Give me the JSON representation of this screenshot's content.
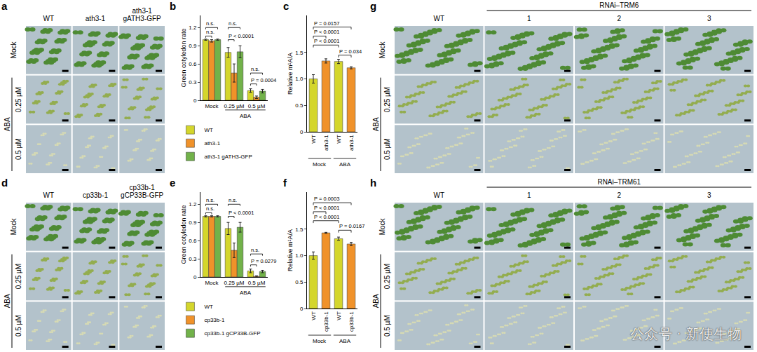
{
  "chart_data": [
    {
      "panel": "b",
      "type": "bar",
      "categories": [
        "Mock",
        "0.25 µM",
        "0.5 µM"
      ],
      "category_groups": [
        {
          "label": "ABA",
          "from": 1,
          "to": 2
        }
      ],
      "series": [
        {
          "name": "WT",
          "color": "#d4d62c",
          "values": [
            1.0,
            0.79,
            0.16
          ],
          "errors": [
            0.01,
            0.08,
            0.03
          ]
        },
        {
          "name": "ath3-1",
          "color": "#f0922a",
          "values": [
            0.98,
            0.45,
            0.05
          ],
          "errors": [
            0.02,
            0.15,
            0.02
          ]
        },
        {
          "name": "ath3-1 gATH3-GFP",
          "color": "#72b24a",
          "values": [
            1.0,
            0.8,
            0.15
          ],
          "errors": [
            0.01,
            0.1,
            0.03
          ]
        }
      ],
      "y_label": "Green cotyledon rate",
      "ylim": [
        0,
        1.4
      ],
      "yticks": [
        0,
        0.3,
        0.6,
        0.9,
        1.2
      ],
      "legend": "bottom",
      "comparisons": [
        {
          "category": 0,
          "from": 0,
          "to": 1,
          "y": 1.06,
          "label": "n.s."
        },
        {
          "category": 0,
          "from": 0,
          "to": 2,
          "y": 1.2,
          "label": "n.s."
        },
        {
          "category": 1,
          "from": 0,
          "to": 1,
          "y": 1.0,
          "label": "P < 0.0001"
        },
        {
          "category": 1,
          "from": 0,
          "to": 2,
          "y": 1.2,
          "label": "n.s."
        },
        {
          "category": 2,
          "from": 0,
          "to": 1,
          "y": 0.27,
          "label": "P = 0.0004"
        },
        {
          "category": 2,
          "from": 0,
          "to": 2,
          "y": 0.45,
          "label": "n.s."
        }
      ]
    },
    {
      "panel": "c",
      "type": "bar",
      "categories": [
        "WT",
        "ath3-1",
        "WT",
        "ath3-1"
      ],
      "category_groups": [
        {
          "label": "Mock",
          "from": 0,
          "to": 1
        },
        {
          "label": "ABA",
          "from": 2,
          "to": 3
        }
      ],
      "values": [
        1.0,
        1.34,
        1.33,
        1.21
      ],
      "errors": [
        0.08,
        0.04,
        0.04,
        0.02
      ],
      "colors": [
        "#d4d62c",
        "#f0922a",
        "#d4d62c",
        "#f0922a"
      ],
      "y_label": "Relative m¹A/A",
      "ylim": [
        0,
        2.2
      ],
      "yticks": [
        0,
        0.5,
        {
          "value": 1,
          "label": "1.0"
        },
        1.5
      ],
      "comparisons": [
        {
          "from": 2,
          "to": 3,
          "y": 1.45,
          "label": "P = 0.034"
        },
        {
          "from": 0,
          "to": 2,
          "y": 1.64,
          "label": "P < 0.0001"
        },
        {
          "from": 0,
          "to": 1,
          "y": 1.81,
          "label": "P < 0.0001"
        },
        {
          "from": 0,
          "to": 3,
          "y": 1.98,
          "label": "P = 0.0157"
        }
      ]
    },
    {
      "panel": "e",
      "type": "bar",
      "categories": [
        "Mock",
        "0.25 µM",
        "0.5 µM"
      ],
      "category_groups": [
        {
          "label": "ABA",
          "from": 1,
          "to": 2
        }
      ],
      "series": [
        {
          "name": "WT",
          "color": "#d4d62c",
          "values": [
            1.0,
            0.8,
            0.1
          ],
          "errors": [
            0.01,
            0.1,
            0.03
          ]
        },
        {
          "name": "cp33b-1",
          "color": "#f0922a",
          "values": [
            1.0,
            0.44,
            0.01
          ],
          "errors": [
            0.01,
            0.12,
            0.01
          ]
        },
        {
          "name": "cp33b-1 gCP33B-GFP",
          "color": "#72b24a",
          "values": [
            1.0,
            0.82,
            0.09
          ],
          "errors": [
            0.01,
            0.08,
            0.02
          ]
        }
      ],
      "y_label": "Green cotyledon rate",
      "ylim": [
        0,
        1.4
      ],
      "yticks": [
        0,
        0.3,
        0.6,
        0.9,
        1.2
      ],
      "legend": "bottom",
      "comparisons": [
        {
          "category": 0,
          "from": 0,
          "to": 1,
          "y": 1.06,
          "label": "n.s."
        },
        {
          "category": 0,
          "from": 0,
          "to": 2,
          "y": 1.2,
          "label": "n.s."
        },
        {
          "category": 1,
          "from": 0,
          "to": 1,
          "y": 1.0,
          "label": "P < 0.0001"
        },
        {
          "category": 1,
          "from": 0,
          "to": 2,
          "y": 1.2,
          "label": "n.s."
        },
        {
          "category": 2,
          "from": 0,
          "to": 1,
          "y": 0.2,
          "label": "P = 0.0279"
        },
        {
          "category": 2,
          "from": 0,
          "to": 2,
          "y": 0.38,
          "label": "n.s."
        }
      ]
    },
    {
      "panel": "f",
      "type": "bar",
      "categories": [
        "WT",
        "cp33b-1",
        "WT",
        "cp33b-1"
      ],
      "category_groups": [
        {
          "label": "Mock",
          "from": 0,
          "to": 1
        },
        {
          "label": "ABA",
          "from": 2,
          "to": 3
        }
      ],
      "values": [
        1.0,
        1.43,
        1.32,
        1.22
      ],
      "errors": [
        0.07,
        0.01,
        0.03,
        0.03
      ],
      "colors": [
        "#d4d62c",
        "#f0922a",
        "#d4d62c",
        "#f0922a"
      ],
      "y_label": "Relative m¹A/A",
      "ylim": [
        0,
        2.2
      ],
      "yticks": [
        0,
        0.5,
        {
          "value": 1,
          "label": "1.0"
        },
        1.5
      ],
      "comparisons": [
        {
          "from": 2,
          "to": 3,
          "y": 1.48,
          "label": "P = 0.0167"
        },
        {
          "from": 0,
          "to": 2,
          "y": 1.66,
          "label": "P < 0.0001"
        },
        {
          "from": 0,
          "to": 1,
          "y": 1.83,
          "label": "P < 0.0001"
        },
        {
          "from": 0,
          "to": 3,
          "y": 2.0,
          "label": "P = 0.0003"
        }
      ]
    }
  ],
  "photo_panels": [
    {
      "panel": "a",
      "columns": [
        "WT",
        "ath3-1",
        "ath3-1 gATH3-GFP"
      ],
      "rows": [
        "Mock",
        "0.25 µM",
        "0.5 µM"
      ],
      "row_group": {
        "label": "ABA",
        "rows": [
          1,
          2
        ]
      }
    },
    {
      "panel": "d",
      "columns": [
        "WT",
        "cp33b-1",
        "cp33b-1 gCP33B-GFP"
      ],
      "rows": [
        "Mock",
        "0.25 µM",
        "0.5 µM"
      ],
      "row_group": {
        "label": "ABA",
        "rows": [
          1,
          2
        ]
      }
    },
    {
      "panel": "g",
      "columns": [
        "WT",
        "1",
        "2",
        "3"
      ],
      "column_group": {
        "label": "RNAi–TRM6",
        "columns": [
          1,
          3
        ]
      },
      "rows": [
        "Mock",
        "0.25 µM",
        "0.5 µM"
      ],
      "row_group": {
        "label": "ABA",
        "rows": [
          1,
          2
        ]
      }
    },
    {
      "panel": "h",
      "columns": [
        "WT",
        "1",
        "2",
        "3"
      ],
      "column_group": {
        "label": "RNAi–TRM61",
        "columns": [
          1,
          3
        ]
      },
      "rows": [
        "Mock",
        "0.25 µM",
        "0.5 µM"
      ],
      "row_group": {
        "label": "ABA",
        "rows": [
          1,
          2
        ]
      }
    }
  ],
  "watermark": "公众号 · 新使生物"
}
